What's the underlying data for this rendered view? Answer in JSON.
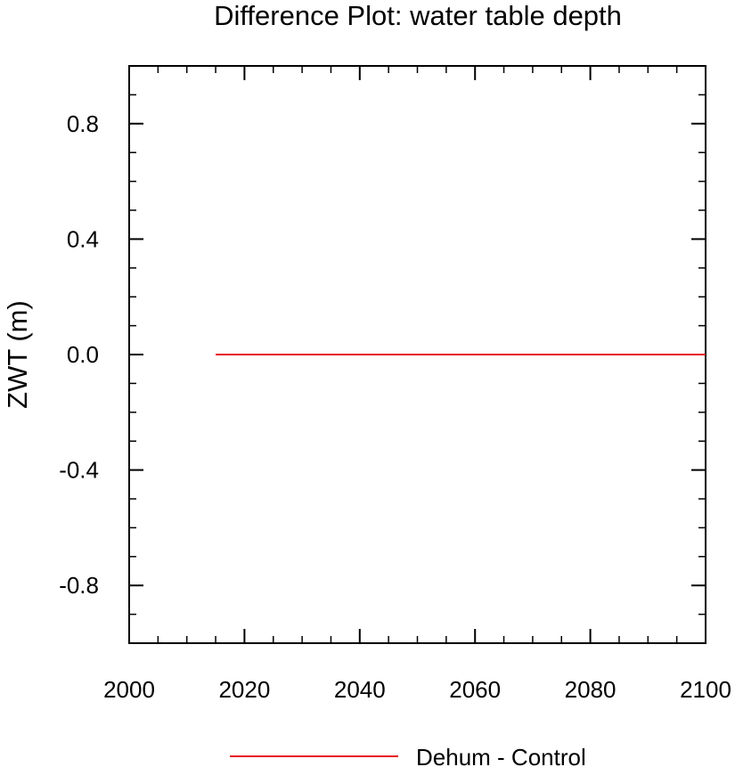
{
  "chart_data": {
    "type": "line",
    "title": "Difference Plot: water table depth",
    "ylabel": "ZWT  (m)",
    "xlabel": "",
    "xlim": [
      2000,
      2100
    ],
    "ylim": [
      -1.0,
      1.0
    ],
    "x_major_ticks": [
      2000,
      2020,
      2040,
      2060,
      2080,
      2100
    ],
    "x_minor_step": 5,
    "y_major_ticks": [
      -0.8,
      -0.4,
      0.0,
      0.4,
      0.8
    ],
    "y_minor_step": 0.1,
    "x_tick_labels": [
      "2000",
      "2020",
      "2040",
      "2060",
      "2080",
      "2100"
    ],
    "y_tick_labels": [
      "-0.8",
      "-0.4",
      "0.0",
      "0.4",
      "0.8"
    ],
    "grid": false,
    "legend_position": "bottom",
    "series": [
      {
        "name": "Dehum - Control",
        "color": "#e8141b",
        "x": [
          2015,
          2100
        ],
        "y": [
          0.0,
          0.0
        ]
      }
    ]
  }
}
